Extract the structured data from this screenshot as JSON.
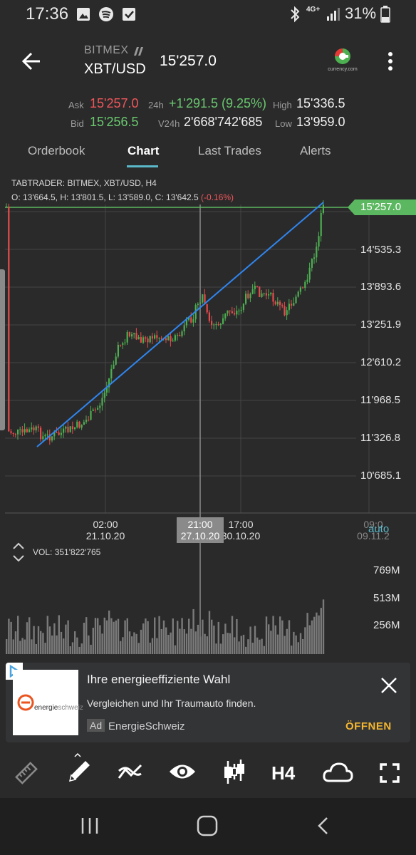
{
  "status_bar": {
    "time": "17:36",
    "network": "4G+",
    "battery": "31%"
  },
  "header": {
    "exchange": "BITMEX",
    "pair": "XBT/USD",
    "last_price": "15'257.0",
    "logo_caption": "currency.com"
  },
  "stats": {
    "ask_label": "Ask",
    "ask_value": "15'257.0",
    "bid_label": "Bid",
    "bid_value": "15'256.5",
    "change_label": "24h",
    "change_value": "+1'291.5 (9.25%)",
    "volume_label": "V24h",
    "volume_value": "2'668'742'685",
    "high_label": "High",
    "high_value": "15'336.5",
    "low_label": "Low",
    "low_value": "13'959.0"
  },
  "tabs": [
    {
      "label": "Orderbook"
    },
    {
      "label": "Chart"
    },
    {
      "label": "Last Trades"
    },
    {
      "label": "Alerts"
    }
  ],
  "chart": {
    "source_line": "TABTRADER: BITMEX, XBT/USD, H4",
    "ohlc_line": "O: 13'664.5, H: 13'801.5, L: 13'589.0, C: 13'642.5",
    "ohlc_change": "(-0.16%)",
    "price_tag": "15'257.0",
    "y_ticks": [
      "14'535.3",
      "13'893.6",
      "13'251.9",
      "12'610.2",
      "11'968.5",
      "11'326.8",
      "10'685.1"
    ],
    "x_ticks": [
      {
        "time": "02:00",
        "date": "21.10.20"
      },
      {
        "time": "17:00",
        "date": "30.10.20"
      },
      {
        "time": "09:0",
        "date": "09.11.2"
      }
    ],
    "crosshair": {
      "time": "21:00",
      "date": "27.10.20"
    },
    "auto_label": "auto",
    "volume_label": "VOL:",
    "volume_value": "351'822'765",
    "vol_ticks": [
      "769M",
      "513M",
      "256M"
    ]
  },
  "ad": {
    "title": "Ihre energieeffiziente Wahl",
    "text": "Vergleichen und Ihr Traumauto finden.",
    "badge": "Ad",
    "advertiser": "EnergieSchweiz",
    "cta": "ÖFFNEN",
    "logo_text_1": "energie",
    "logo_text_2": "schweiz"
  },
  "toolbar": {
    "interval": "H4"
  },
  "colors": {
    "up": "#4caf50",
    "down": "#e84b4b",
    "trendline": "#2f86f0",
    "price_line": "#5cb860",
    "accent": "#5bb8c8",
    "cta": "#f5b731"
  }
}
